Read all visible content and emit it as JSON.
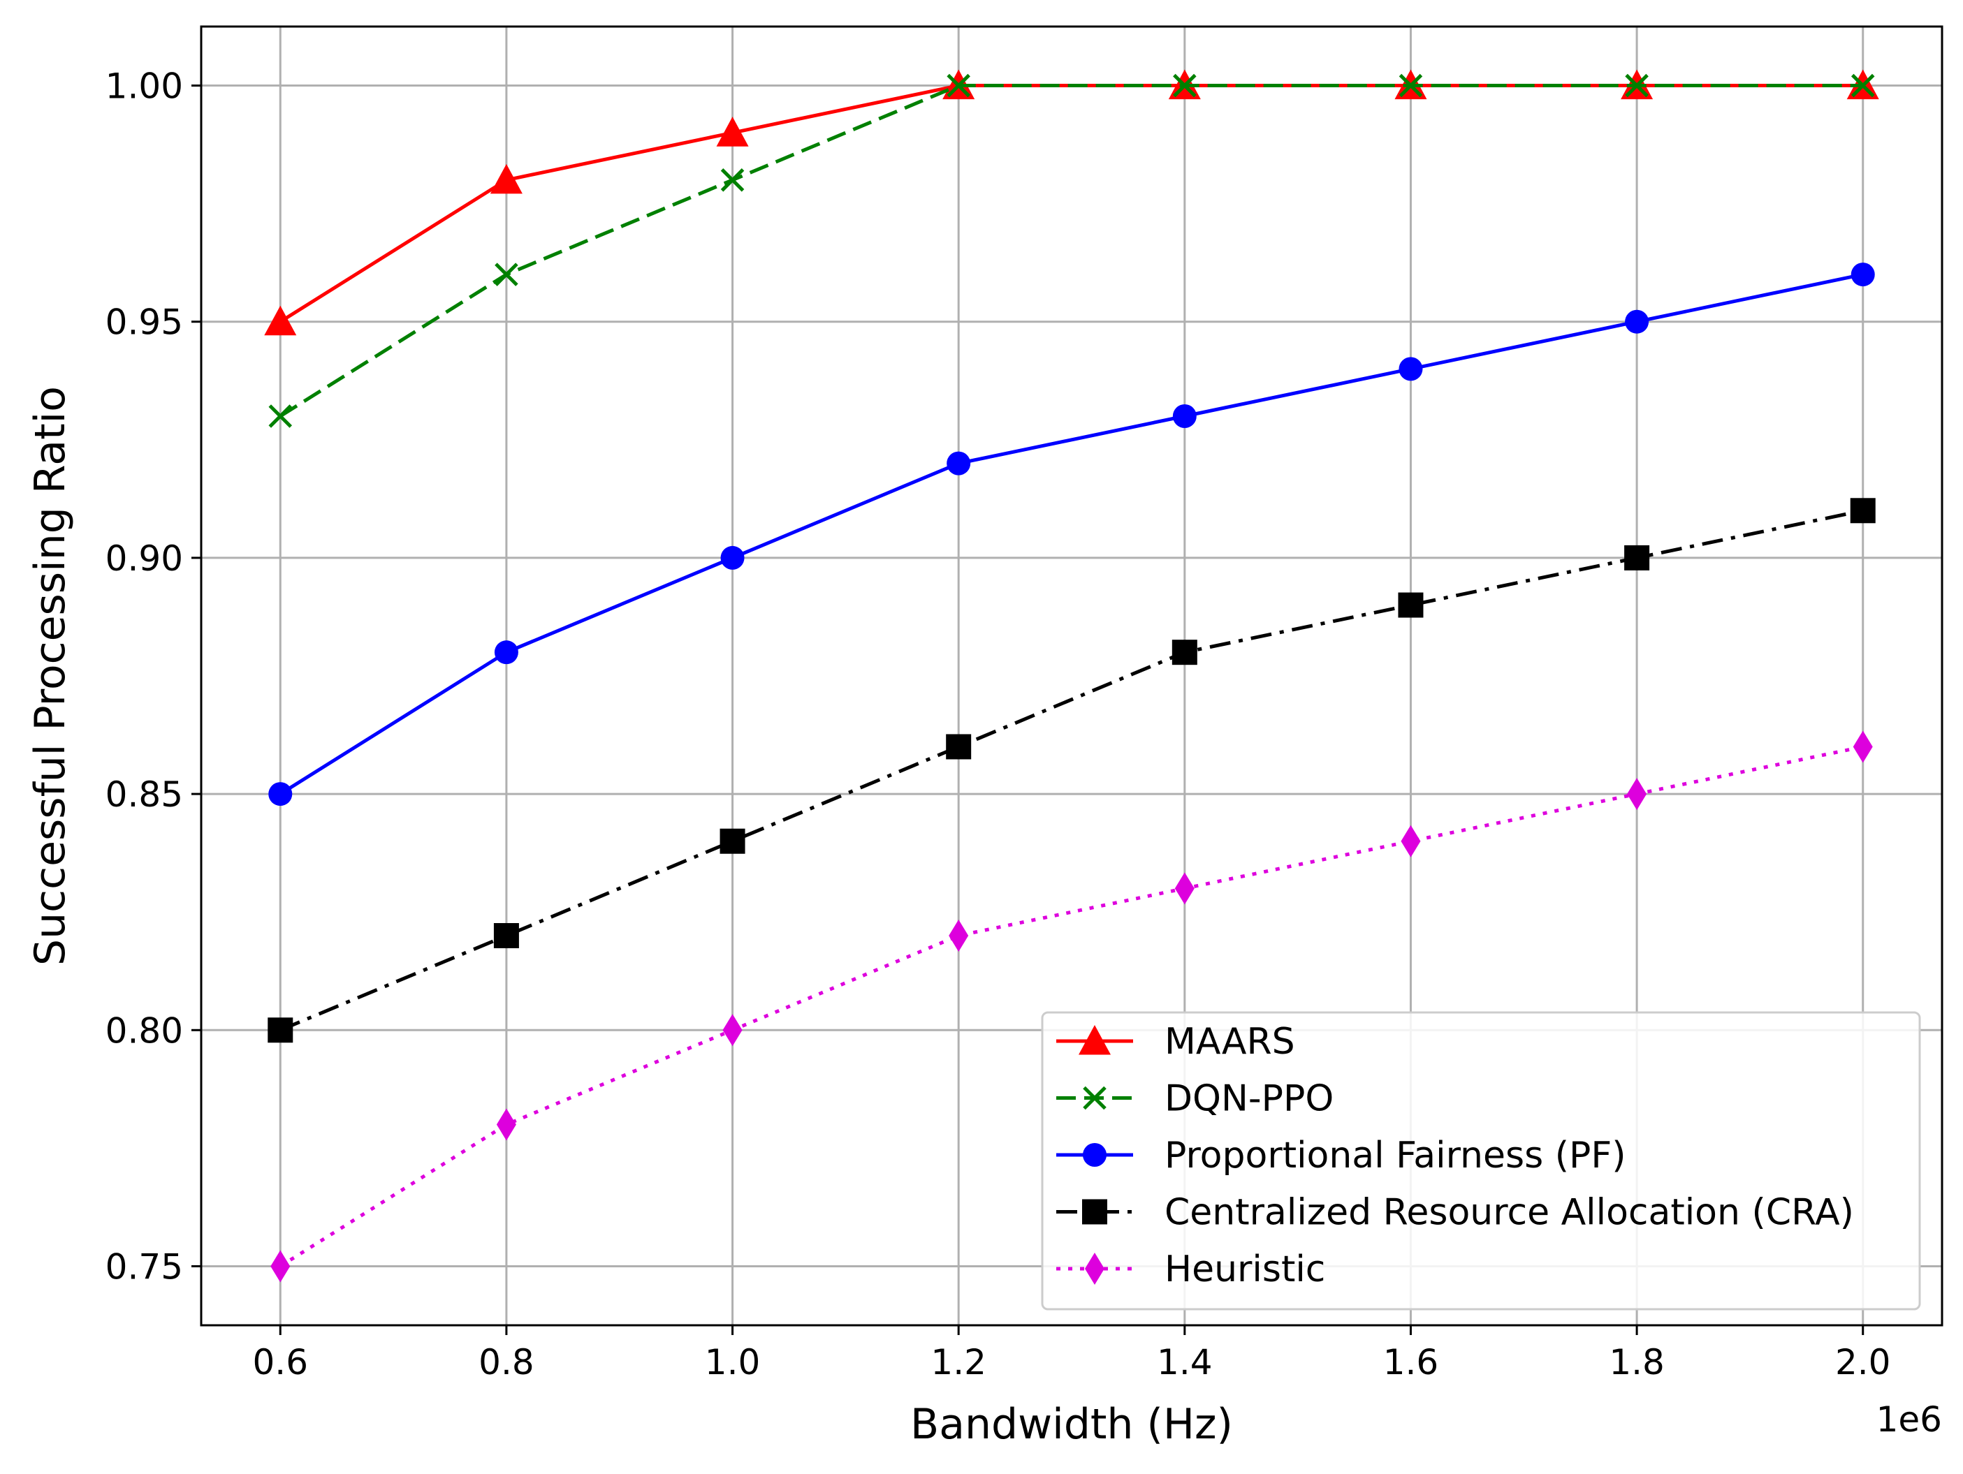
{
  "chart_data": {
    "type": "line",
    "title": "",
    "xlabel": "Bandwidth (Hz)",
    "ylabel": "Successful Processing Ratio",
    "x_offset_label": "1e6",
    "x_scale": 1000000,
    "xlim": [
      0.53,
      2.07
    ],
    "ylim": [
      0.7375,
      1.0125
    ],
    "xticks": [
      0.6,
      0.8,
      1.0,
      1.2,
      1.4,
      1.6,
      1.8,
      2.0
    ],
    "xtick_labels": [
      "0.6",
      "0.8",
      "1.0",
      "1.2",
      "1.4",
      "1.6",
      "1.8",
      "2.0"
    ],
    "yticks": [
      0.75,
      0.8,
      0.85,
      0.9,
      0.95,
      1.0
    ],
    "ytick_labels": [
      "0.75",
      "0.80",
      "0.85",
      "0.90",
      "0.95",
      "1.00"
    ],
    "grid": true,
    "legend_position": "bottom-right",
    "x": [
      0.6,
      0.8,
      1.0,
      1.2,
      1.4,
      1.6,
      1.8,
      2.0
    ],
    "series": [
      {
        "name": "MAARS",
        "color": "#ff0000",
        "marker": "triangle",
        "dash": "solid",
        "values": [
          0.95,
          0.98,
          0.99,
          1.0,
          1.0,
          1.0,
          1.0,
          1.0
        ]
      },
      {
        "name": "DQN-PPO",
        "color": "#008000",
        "marker": "x",
        "dash": "dashed",
        "values": [
          0.93,
          0.96,
          0.98,
          1.0,
          1.0,
          1.0,
          1.0,
          1.0
        ]
      },
      {
        "name": "Proportional Fairness (PF)",
        "color": "#0000ff",
        "marker": "circle",
        "dash": "solid",
        "values": [
          0.85,
          0.88,
          0.9,
          0.92,
          0.93,
          0.94,
          0.95,
          0.96
        ]
      },
      {
        "name": "Centralized Resource Allocation (CRA)",
        "color": "#000000",
        "marker": "square",
        "dash": "dashdot",
        "values": [
          0.8,
          0.82,
          0.84,
          0.86,
          0.88,
          0.89,
          0.9,
          0.91
        ]
      },
      {
        "name": "Heuristic",
        "color": "#dd00dd",
        "marker": "diamond",
        "dash": "dotted",
        "values": [
          0.75,
          0.78,
          0.8,
          0.82,
          0.83,
          0.84,
          0.85,
          0.86
        ]
      }
    ]
  }
}
